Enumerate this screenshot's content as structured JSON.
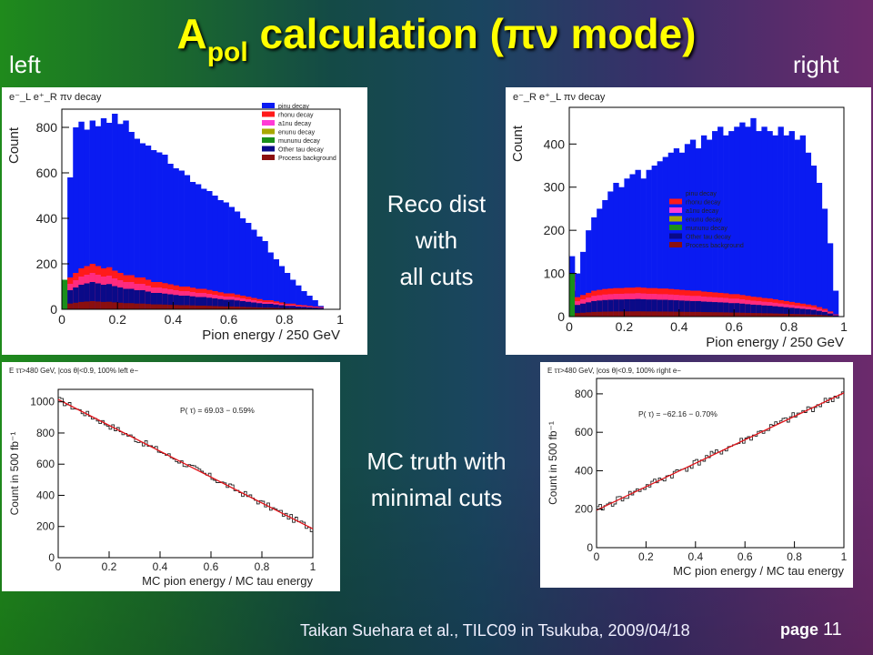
{
  "slide": {
    "title_main": "A",
    "title_sub": "pol",
    "title_rest": " calculation (",
    "title_greek": "πν",
    "title_end": " mode)",
    "left_label": "left",
    "right_label": "right",
    "reco_text": [
      "Reco dist",
      "with",
      "all cuts"
    ],
    "mc_text": [
      "MC truth with",
      "minimal cuts"
    ],
    "footer": "Taikan Suehara et al., TILC09 in Tsukuba, 2009/04/18",
    "page_label": "page",
    "page_number": "11"
  },
  "colors": {
    "pinu": "#0a1bf2",
    "rhonu": "#ff1a1a",
    "a1nu": "#ff3bd6",
    "enunu": "#a8a800",
    "mununu": "#1a8f1a",
    "other": "#0a0a88",
    "process": "#8b0f0f",
    "fit": "#e0141a"
  },
  "chart_data": [
    {
      "type": "bar",
      "title": "e⁻_L e⁺_R πν decay",
      "xlabel": "Pion energy / 250 GeV",
      "ylabel": "Count",
      "xlim": [
        0,
        1
      ],
      "ylim": [
        0,
        880
      ],
      "yticks": [
        0,
        200,
        400,
        600,
        800
      ],
      "xticks": [
        0,
        0.2,
        0.4,
        0.6,
        0.8,
        1
      ],
      "legend_position": "top-right",
      "legend": [
        "pinu decay",
        "rhonu decay",
        "a1nu decay",
        "enunu decay",
        "mununu decay",
        "Other tau decay",
        "Process background"
      ],
      "bin_width": 0.02,
      "series": [
        {
          "name": "pinu decay",
          "values": [
            100,
            580,
            800,
            825,
            790,
            830,
            805,
            840,
            820,
            860,
            815,
            830,
            780,
            750,
            730,
            720,
            700,
            690,
            680,
            640,
            620,
            610,
            590,
            560,
            550,
            530,
            520,
            500,
            480,
            470,
            450,
            430,
            400,
            380,
            350,
            320,
            300,
            250,
            220,
            190,
            160,
            130,
            105,
            80,
            60,
            40,
            15,
            0,
            0,
            0
          ]
        },
        {
          "name": "rhonu decay",
          "values": [
            130,
            140,
            160,
            180,
            190,
            200,
            190,
            180,
            185,
            170,
            160,
            150,
            150,
            140,
            140,
            130,
            120,
            120,
            115,
            110,
            105,
            100,
            100,
            95,
            90,
            90,
            85,
            80,
            75,
            70,
            70,
            65,
            60,
            55,
            50,
            45,
            40,
            40,
            35,
            30,
            25,
            25,
            20,
            18,
            15,
            12,
            10,
            0,
            0,
            0
          ]
        }
      ]
    },
    {
      "type": "bar",
      "title": "e⁻_R e⁺_L πν decay",
      "xlabel": "Pion energy / 250 GeV",
      "ylabel": "Count",
      "xlim": [
        0,
        1
      ],
      "ylim": [
        0,
        485
      ],
      "yticks": [
        0,
        100,
        200,
        300,
        400
      ],
      "xticks": [
        0,
        0.2,
        0.4,
        0.6,
        0.8,
        1
      ],
      "legend_position": "center-right",
      "legend": [
        "pinu decay",
        "rhonu decay",
        "a1nu decay",
        "enunu decay",
        "mununu decay",
        "Other tau decay",
        "Process background"
      ],
      "bin_width": 0.02,
      "series": [
        {
          "name": "pinu decay",
          "values": [
            140,
            100,
            150,
            200,
            230,
            250,
            270,
            290,
            310,
            300,
            320,
            330,
            340,
            320,
            340,
            350,
            360,
            370,
            380,
            390,
            380,
            400,
            410,
            390,
            420,
            410,
            430,
            440,
            420,
            430,
            440,
            450,
            440,
            460,
            430,
            440,
            430,
            420,
            440,
            420,
            430,
            410,
            420,
            380,
            350,
            310,
            250,
            170,
            60,
            0
          ]
        },
        {
          "name": "rhonu decay",
          "values": [
            100,
            45,
            50,
            55,
            60,
            62,
            64,
            65,
            66,
            66,
            67,
            67,
            68,
            67,
            66,
            66,
            65,
            65,
            64,
            63,
            62,
            61,
            60,
            60,
            58,
            57,
            56,
            55,
            54,
            52,
            52,
            50,
            48,
            46,
            45,
            43,
            42,
            40,
            38,
            36,
            34,
            32,
            30,
            28,
            26,
            22,
            18,
            12,
            5,
            0
          ]
        }
      ]
    },
    {
      "type": "line",
      "title": "E ττ>480 GeV, |cos θ|<0.9, 100% left e−",
      "xlabel": "MC pion energy / MC tau energy",
      "ylabel": "Count in 500 fb⁻¹",
      "xlim": [
        0,
        1
      ],
      "ylim": [
        0,
        1080
      ],
      "yticks": [
        0,
        200,
        400,
        600,
        800,
        1000
      ],
      "xticks": [
        0,
        0.2,
        0.4,
        0.6,
        0.8,
        1
      ],
      "annotation": "P( τ) = 69.03  − 0.59%",
      "series": [
        {
          "name": "histogram",
          "start": 1015,
          "end": 185
        },
        {
          "name": "fit",
          "x": [
            0,
            1
          ],
          "y": [
            1015,
            185
          ]
        }
      ]
    },
    {
      "type": "line",
      "title": "E ττ>480 GeV, |cos θ|<0.9, 100% right e−",
      "xlabel": "MC pion energy / MC tau energy",
      "ylabel": "Count in 500 fb⁻¹",
      "xlim": [
        0,
        1
      ],
      "ylim": [
        0,
        880
      ],
      "yticks": [
        0,
        200,
        400,
        600,
        800
      ],
      "xticks": [
        0,
        0.2,
        0.4,
        0.6,
        0.8,
        1
      ],
      "annotation": "P( τ) = −62.16  − 0.70%",
      "series": [
        {
          "name": "histogram",
          "start": 195,
          "end": 805
        },
        {
          "name": "fit",
          "x": [
            0,
            1
          ],
          "y": [
            195,
            805
          ]
        }
      ]
    }
  ]
}
